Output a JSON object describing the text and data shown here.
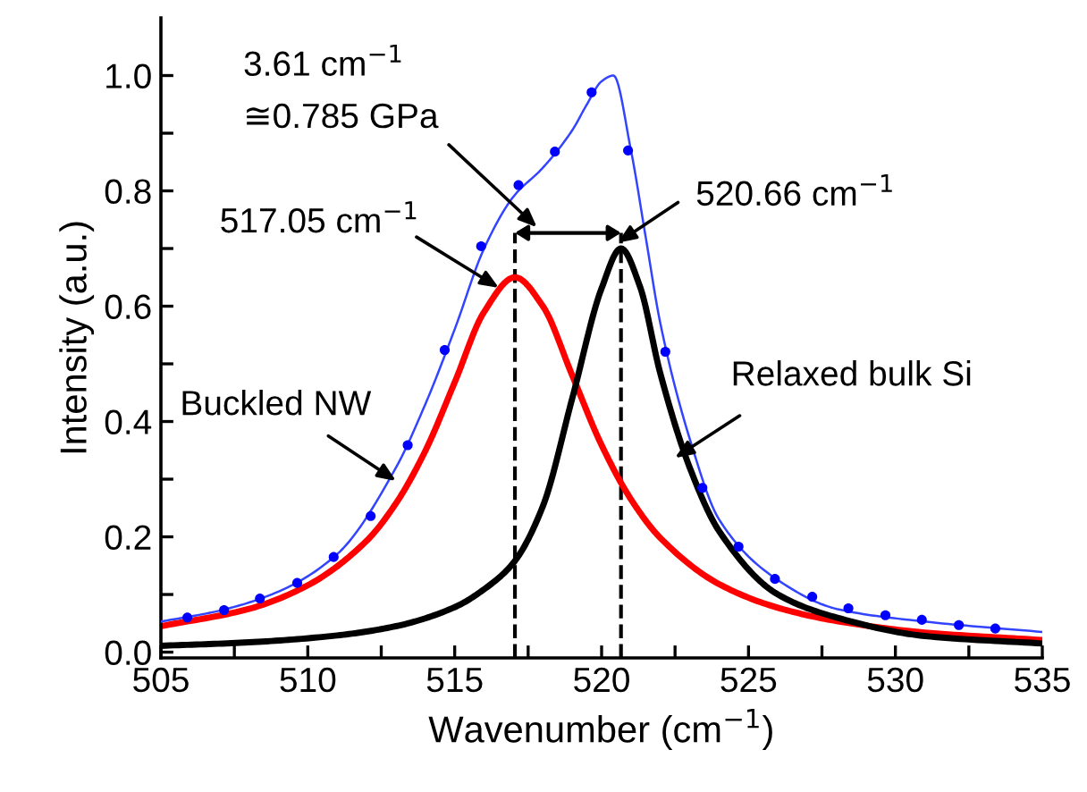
{
  "chart_data": {
    "type": "line",
    "xlabel": "Wavenumber (cm$^{−1}$)",
    "ylabel": "Intensity (a.u.)",
    "xlim": [
      505,
      535
    ],
    "ylim": [
      -0.01,
      1.1
    ],
    "xticks": [
      505,
      {
        "value": 507.5,
        "label": null
      },
      510,
      {
        "value": 512.5,
        "label": null
      },
      515,
      {
        "value": 517.5,
        "label": null
      },
      520,
      {
        "value": 522.5,
        "label": null
      },
      525,
      {
        "value": 527.5,
        "label": null
      },
      530,
      {
        "value": 532.5,
        "label": null
      },
      535
    ],
    "yticks": [
      {
        "value": 0,
        "label": "0.0"
      },
      {
        "value": 0.1,
        "label": null
      },
      {
        "value": 0.2,
        "label": "0.2"
      },
      {
        "value": 0.3,
        "label": null
      },
      {
        "value": 0.4,
        "label": "0.4"
      },
      {
        "value": 0.5,
        "label": null
      },
      {
        "value": 0.6,
        "label": "0.6"
      },
      {
        "value": 0.7,
        "label": null
      },
      {
        "value": 0.8,
        "label": "0.8"
      },
      {
        "value": 0.9,
        "label": null
      },
      {
        "value": 1.0,
        "label": "1.0"
      }
    ],
    "grid": false,
    "series": [
      {
        "type": "scatter",
        "marker": "circle",
        "color": "#0000ff",
        "x": [
          505.9,
          507.15,
          508.37,
          509.64,
          510.88,
          512.14,
          513.4,
          514.66,
          515.9,
          517.17,
          518.41,
          519.66,
          520.9,
          522.17,
          523.43,
          524.66,
          525.9,
          527.17,
          528.4,
          529.66,
          530.9,
          532.16,
          533.4
        ],
        "values": [
          0.06,
          0.073,
          0.093,
          0.12,
          0.165,
          0.236,
          0.359,
          0.524,
          0.704,
          0.81,
          0.868,
          0.971,
          0.87,
          0.521,
          0.285,
          0.183,
          0.127,
          0.096,
          0.076,
          0.064,
          0.056,
          0.047,
          0.041
        ]
      },
      {
        "line_style": "solid",
        "color": "#3344ff",
        "x": [
          505,
          507,
          509,
          511,
          513,
          514,
          515,
          516,
          517,
          518,
          519,
          519.5,
          520,
          520.4,
          521,
          521.5,
          522,
          523,
          524,
          526,
          528,
          531,
          535
        ],
        "values": [
          0.053,
          0.072,
          0.105,
          0.17,
          0.32,
          0.43,
          0.56,
          0.7,
          0.79,
          0.84,
          0.905,
          0.95,
          0.99,
          1.0,
          0.87,
          0.72,
          0.57,
          0.37,
          0.23,
          0.125,
          0.075,
          0.053,
          0.035
        ]
      },
      {
        "line_style": "solid",
        "color": "#ff0000",
        "x": [
          505,
          508,
          510,
          512,
          513,
          514,
          515,
          516,
          517.05,
          518,
          519,
          520,
          521,
          522,
          524,
          526,
          528,
          531,
          535
        ],
        "values": [
          0.045,
          0.075,
          0.116,
          0.193,
          0.258,
          0.349,
          0.468,
          0.59,
          0.65,
          0.6,
          0.48,
          0.359,
          0.265,
          0.198,
          0.118,
          0.077,
          0.054,
          0.034,
          0.021
        ]
      },
      {
        "line_style": "solid",
        "color": "#000000",
        "x": [
          505,
          508,
          511,
          513,
          515,
          516,
          517,
          518,
          519,
          520,
          520.66,
          521.3,
          522,
          523,
          524,
          526,
          528,
          531,
          535
        ],
        "values": [
          0.011,
          0.017,
          0.029,
          0.045,
          0.078,
          0.109,
          0.155,
          0.253,
          0.44,
          0.631,
          0.7,
          0.635,
          0.483,
          0.32,
          0.21,
          0.1,
          0.06,
          0.028,
          0.015
        ]
      }
    ],
    "ref_lines": [
      {
        "axis": "x",
        "value": 517.05,
        "color": "#000000",
        "line_style": "dashed"
      },
      {
        "axis": "x",
        "value": 520.66,
        "color": "#000000",
        "line_style": "dashed"
      }
    ],
    "annotations": [
      "3.61 cm$^{−1}$",
      "≅0.785 GPa",
      {
        "text": "517.05 cm$^{−1}$",
        "x": 516.5,
        "y": 0.632
      },
      {
        "text": "520.66 cm$^{−1}$",
        "x": 520.55,
        "y": 0.71
      },
      {
        "text": "Buckled NW",
        "x": 513.0,
        "y": 0.297
      },
      {
        "text": "Relaxed bulk Si",
        "x": 522.5,
        "y": 0.337
      }
    ]
  }
}
